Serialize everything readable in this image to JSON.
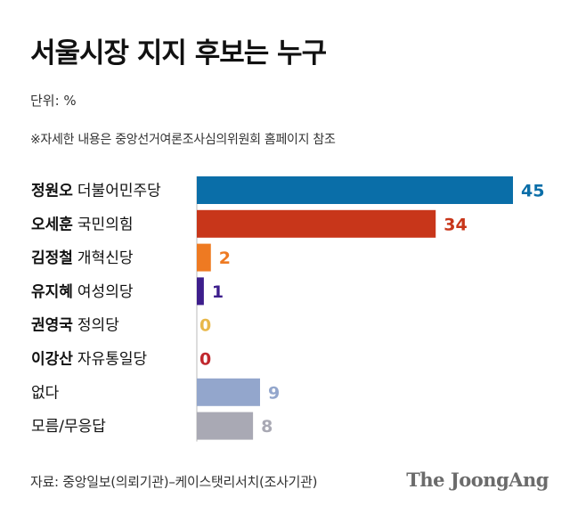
{
  "header": {
    "title": "서울시장 지지 후보는 누구",
    "unit": "단위: %",
    "note": "※자세한 내용은 중앙선거여론조사심의위원회 홈페이지 참조"
  },
  "footer": {
    "source": "자료: 중앙일보(의뢰기관)–케이스탯리서치(조사기관)",
    "logo": "The JoongAng"
  },
  "chart_data": {
    "type": "bar",
    "orientation": "horizontal",
    "title": "서울시장 지지 후보는 누구",
    "unit": "%",
    "categories": [
      {
        "name": "정원오",
        "party": "더불어민주당"
      },
      {
        "name": "오세훈",
        "party": "국민의힘"
      },
      {
        "name": "김정철",
        "party": "개혁신당"
      },
      {
        "name": "유지혜",
        "party": "여성의당"
      },
      {
        "name": "권영국",
        "party": "정의당"
      },
      {
        "name": "이강산",
        "party": "자유통일당"
      },
      {
        "name": "",
        "party": "없다"
      },
      {
        "name": "",
        "party": "모름/무응답"
      }
    ],
    "values": [
      45,
      34,
      2,
      1,
      0,
      0,
      9,
      8
    ],
    "colors": [
      "#0a6ea8",
      "#c8361a",
      "#ee7a22",
      "#3d1e8c",
      "#e8b84a",
      "#c0272d",
      "#93a6cc",
      "#a9a9b4"
    ],
    "label_colors": [
      "#0a6ea8",
      "#c8361a",
      "#ee7a22",
      "#3d1e8c",
      "#e8b84a",
      "#c0272d",
      "#93a6cc",
      "#a9a9b4"
    ],
    "xlim": [
      0,
      45
    ],
    "grid": false
  }
}
